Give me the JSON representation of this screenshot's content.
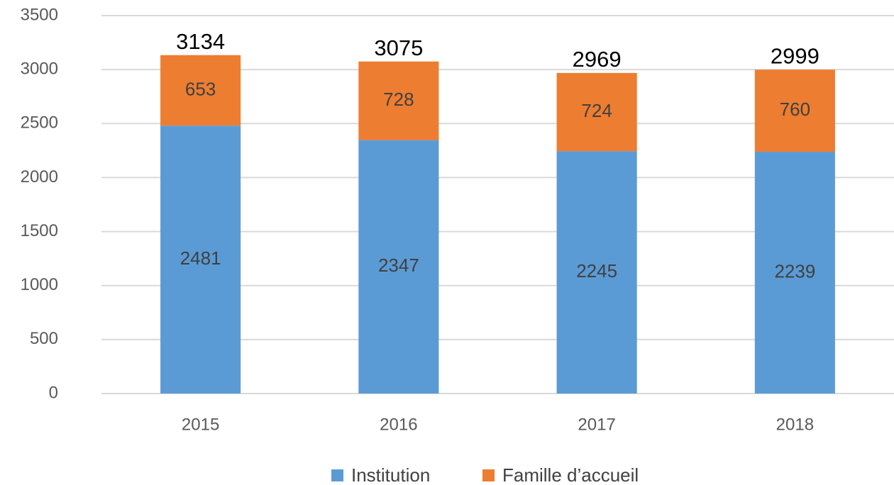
{
  "chart_data": {
    "type": "stacked_bar",
    "categories": [
      "2015",
      "2016",
      "2017",
      "2018"
    ],
    "series": [
      {
        "name": "Institution",
        "color": "#5b9bd5",
        "values": [
          2481,
          2347,
          2245,
          2239
        ]
      },
      {
        "name": "Famille d’accueil",
        "color": "#ed7d31",
        "values": [
          653,
          728,
          724,
          760
        ]
      }
    ],
    "totals": [
      3134,
      3075,
      2969,
      2999
    ],
    "ylim": [
      0,
      3500
    ],
    "yticks": [
      0,
      500,
      1000,
      1500,
      2000,
      2500,
      3000,
      3500
    ],
    "grid": true,
    "legend": "bottom"
  }
}
